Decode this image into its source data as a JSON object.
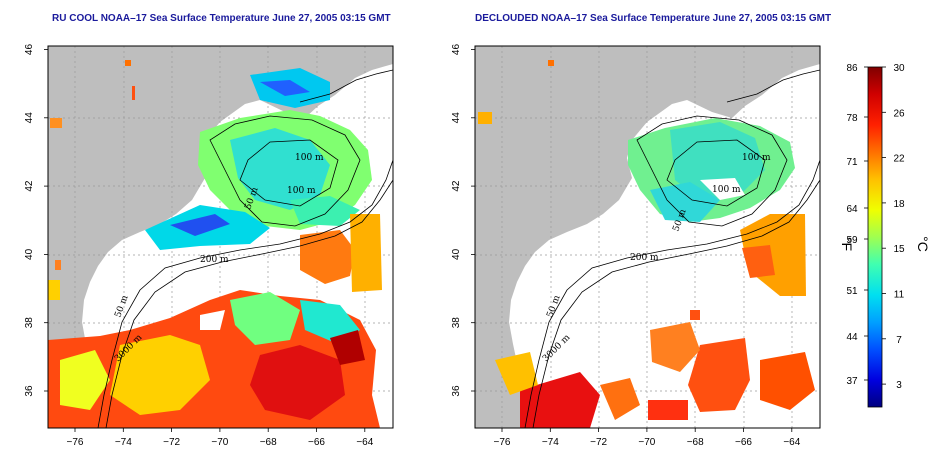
{
  "panels": [
    {
      "title": "RU COOL NOAA–17 Sea Surface Temperature June 27, 2005 03:15 GMT",
      "contour_labels": [
        "100 m",
        "100 m",
        "50 m",
        "200 m",
        "50 m",
        "3000 m"
      ]
    },
    {
      "title": "DECLOUDED NOAA–17 Sea Surface Temperature June 27, 2005 03:15 GMT",
      "contour_labels": [
        "100 m",
        "100 m",
        "50 m",
        "200 m",
        "50 m",
        "3000 m"
      ]
    }
  ],
  "axes": {
    "x_ticks": [
      "−76",
      "−74",
      "−72",
      "−70",
      "−68",
      "−66",
      "−64"
    ],
    "y_ticks": [
      "36",
      "38",
      "40",
      "42",
      "44",
      "46"
    ]
  },
  "colorbar": {
    "fahrenheit_ticks": [
      "86",
      "78",
      "71",
      "64",
      "59",
      "51",
      "44",
      "37"
    ],
    "celsius_ticks": [
      "30",
      "26",
      "22",
      "18",
      "15",
      "11",
      "7",
      "3"
    ],
    "fahrenheit_unit": "°F",
    "celsius_unit": "°C",
    "colors": [
      "#000080",
      "#0000e0",
      "#0050ff",
      "#00a0ff",
      "#00e0f0",
      "#40ffb0",
      "#a0ff50",
      "#f0ff00",
      "#ffc000",
      "#ff7000",
      "#ff2000",
      "#d00000",
      "#800000"
    ]
  },
  "colors": {
    "land": "#bebebe",
    "title": "#1a1a9c",
    "missing": "#ffffff"
  }
}
